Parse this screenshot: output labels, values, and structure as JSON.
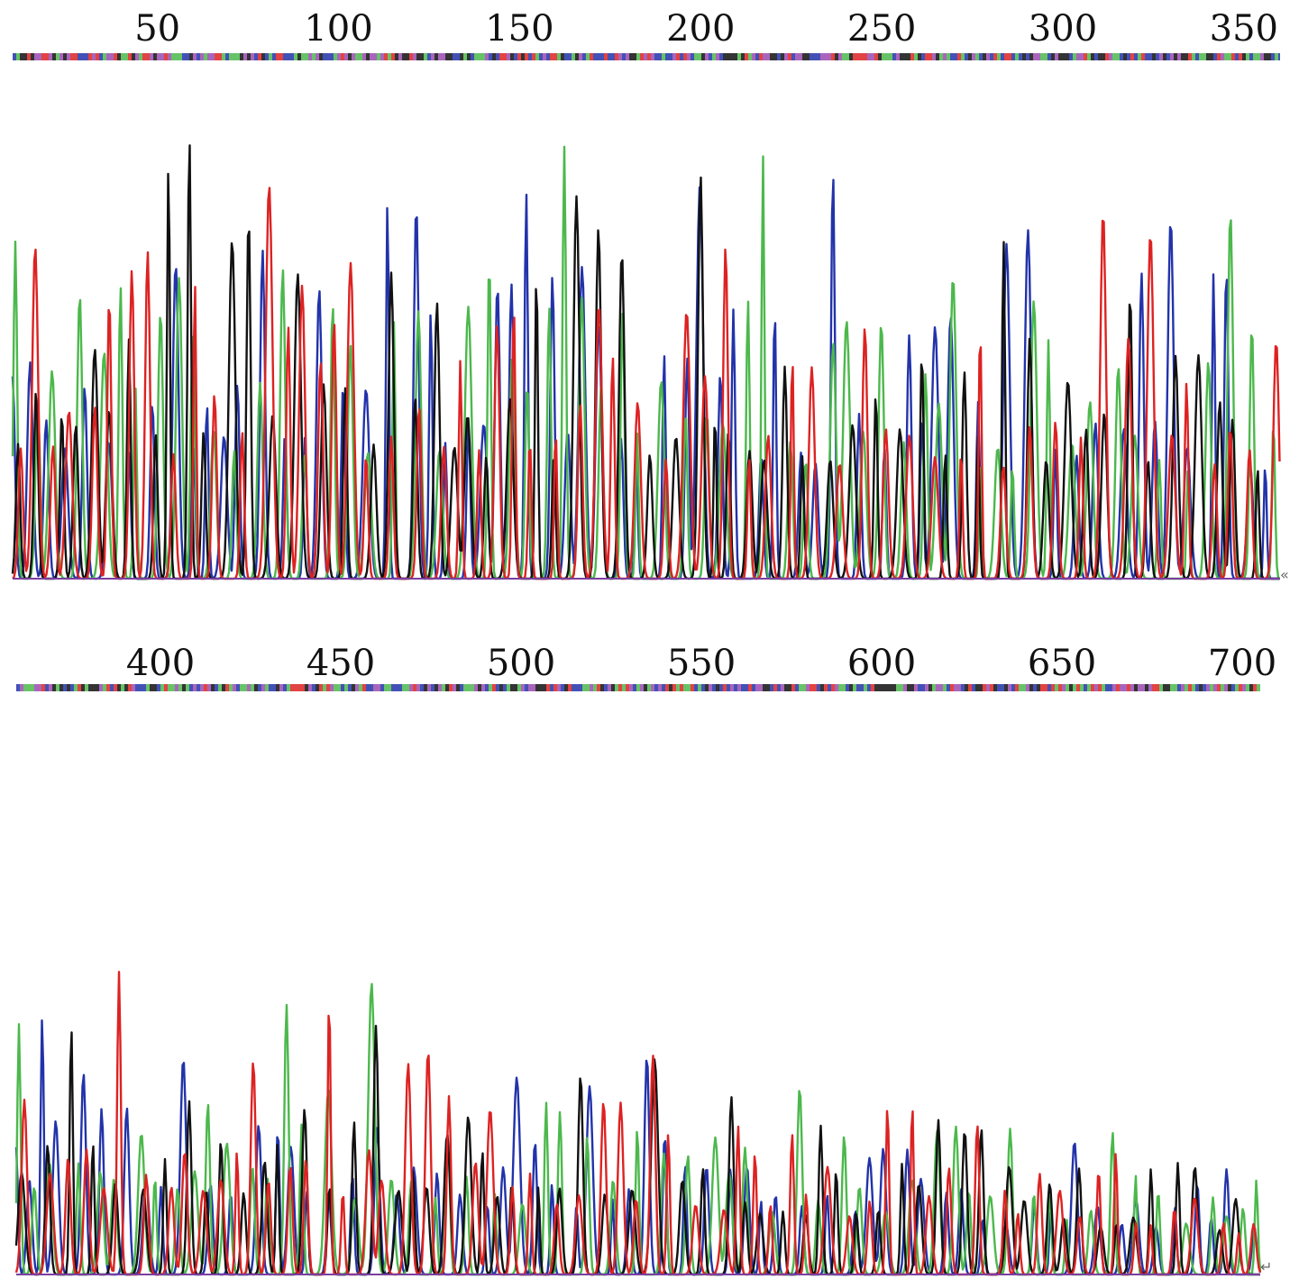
{
  "chart_data": [
    {
      "type": "line",
      "title": "",
      "xlabel": "",
      "ylabel": "",
      "xticks": [
        "50",
        "100",
        "150",
        "200",
        "250",
        "300",
        "350"
      ],
      "xlim": [
        10,
        360
      ],
      "grid": false,
      "legend": "none",
      "series": [
        {
          "color": "#2233aa"
        },
        {
          "color": "#4cb84c"
        },
        {
          "color": "#111111"
        },
        {
          "color": "#dd2222"
        }
      ],
      "base_calls": "colored band of base letters above trace"
    },
    {
      "type": "line",
      "title": "",
      "xlabel": "",
      "ylabel": "",
      "xticks": [
        "400",
        "450",
        "500",
        "550",
        "600",
        "650",
        "700"
      ],
      "xlim": [
        360,
        705
      ],
      "grid": false,
      "legend": "none",
      "series": [
        {
          "color": "#2233aa"
        },
        {
          "color": "#4cb84c"
        },
        {
          "color": "#111111"
        },
        {
          "color": "#dd2222"
        }
      ],
      "base_calls": "colored band of base letters above trace"
    }
  ],
  "colors": {
    "A": "#4cb84c",
    "C": "#2233aa",
    "G": "#111111",
    "T": "#dd2222"
  }
}
